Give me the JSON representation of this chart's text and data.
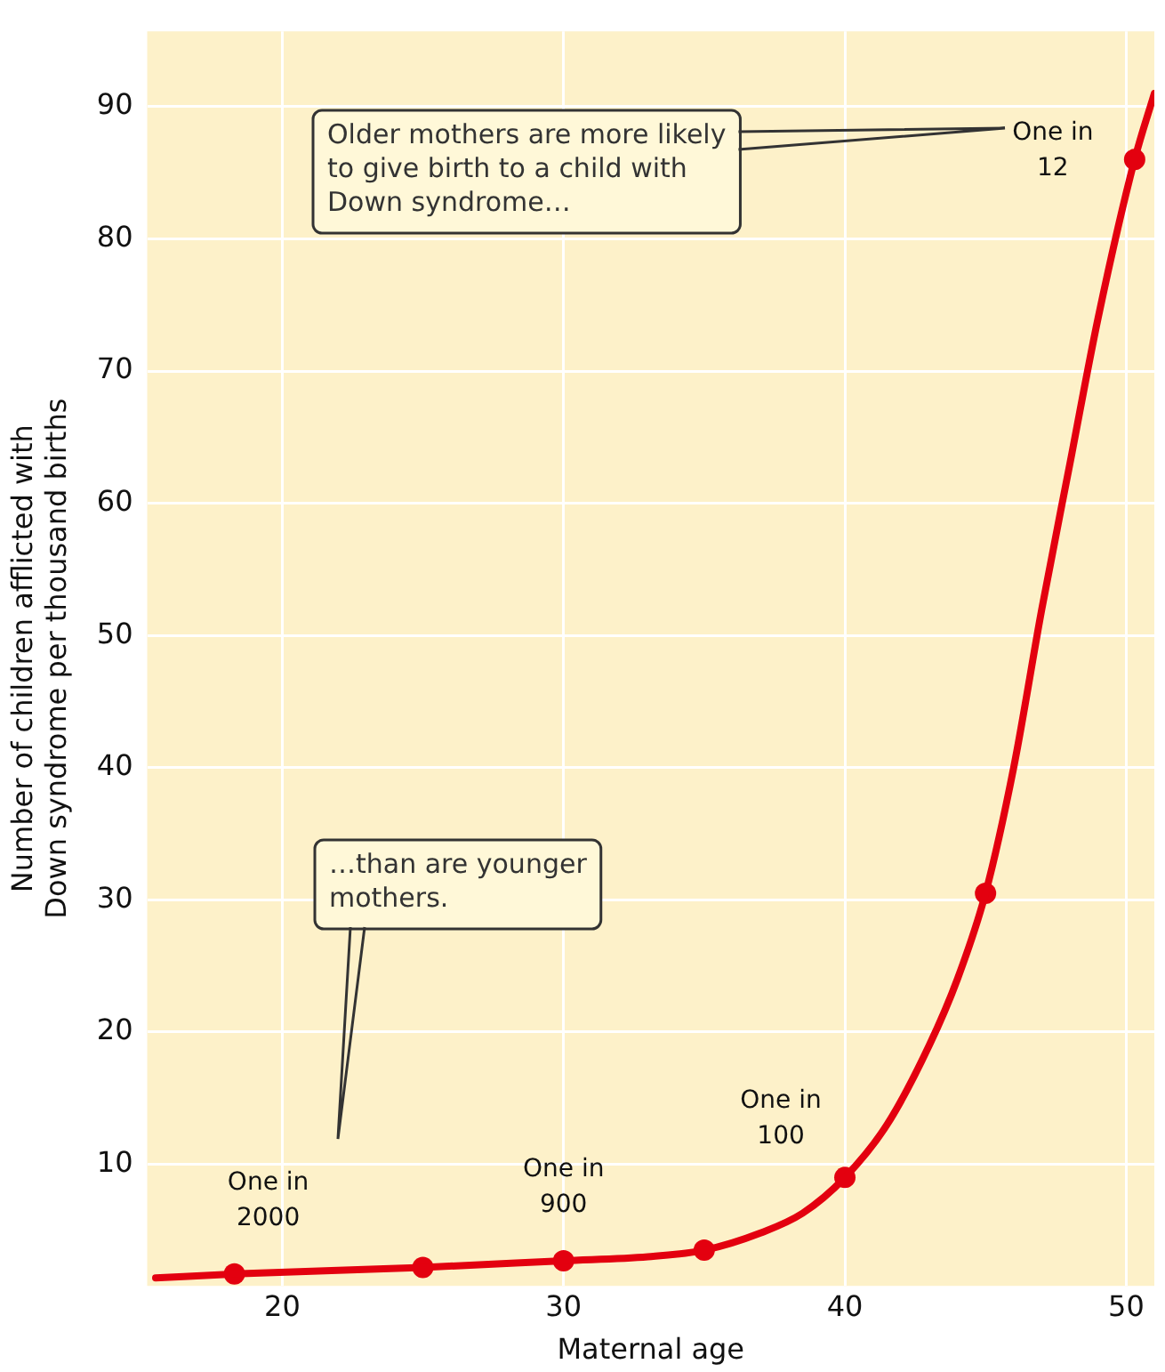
{
  "chart_data": {
    "type": "line",
    "xlabel": "Maternal age",
    "ylabel": "Number of children afflicted with\nDown syndrome per thousand births",
    "xlim": [
      15.2,
      51
    ],
    "ylim": [
      0.8,
      95.7
    ],
    "xticks": [
      20,
      30,
      40,
      50
    ],
    "yticks": [
      10,
      20,
      30,
      40,
      50,
      60,
      70,
      80,
      90
    ],
    "grid": true,
    "legend": false,
    "series": [
      {
        "color": "#e3000f",
        "marker": "none",
        "x": [
          15.5,
          18.3,
          25,
          30,
          33,
          35,
          37,
          38.5,
          40,
          41.5,
          43,
          44,
          45,
          46,
          47,
          48,
          49,
          50.3,
          51
        ],
        "values": [
          1.4,
          1.7,
          2.2,
          2.7,
          3.0,
          3.5,
          4.8,
          6.3,
          9,
          13,
          19,
          24,
          30.5,
          40,
          52,
          63,
          74,
          86,
          91
        ]
      },
      {
        "type": "scatter",
        "color": "#e3000f",
        "marker": "circle",
        "x": [
          18.3,
          25,
          30,
          35,
          40,
          45,
          50.3
        ],
        "values": [
          1.7,
          2.2,
          2.7,
          3.5,
          9,
          30.5,
          86
        ]
      }
    ],
    "annotations": [
      "Older mothers are more likely to give birth to a child with Down syndrome…",
      "…than are younger mothers.",
      {
        "text": "One in 2000",
        "x": 18.3,
        "y": 1.7
      },
      {
        "text": "One in 900",
        "x": 30,
        "y": 2.7
      },
      {
        "text": "One in 100",
        "x": 40,
        "y": 9
      },
      {
        "text": "One in 12",
        "x": 50.3,
        "y": 86
      }
    ]
  }
}
